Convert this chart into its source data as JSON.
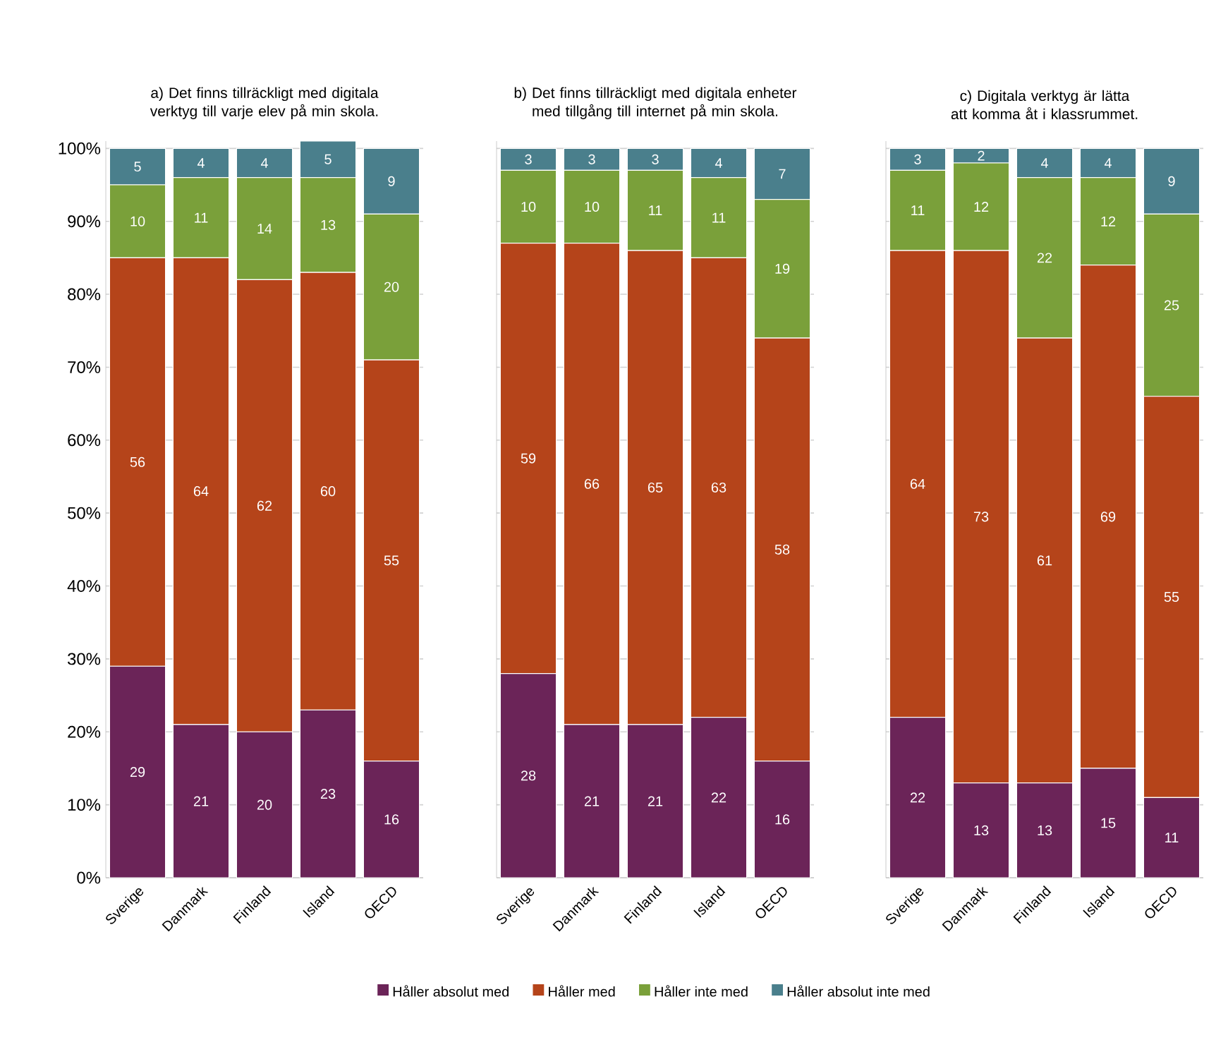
{
  "chart_data": [
    {
      "type": "bar",
      "stacked": true,
      "grid": "y",
      "legend": "bottom",
      "title": "a) Det finns tillräckligt med digitala verktyg till varje elev på min skola.",
      "categories": [
        "Sverige",
        "Danmark",
        "Finland",
        "Island",
        "OECD"
      ],
      "ylim": [
        0,
        101
      ],
      "yticks": [
        {
          "value": 0,
          "label": "0%"
        },
        {
          "value": 10,
          "label": "10%"
        },
        {
          "value": 20,
          "label": "20%"
        },
        {
          "value": 30,
          "label": "30%"
        },
        {
          "value": 40,
          "label": "40%"
        },
        {
          "value": 50,
          "label": "50%"
        },
        {
          "value": 60,
          "label": "60%"
        },
        {
          "value": 70,
          "label": "70%"
        },
        {
          "value": 80,
          "label": "80%"
        },
        {
          "value": 90,
          "label": "90%"
        },
        {
          "value": 100,
          "label": "100%"
        }
      ],
      "series": [
        {
          "name": "Håller absolut med",
          "color": "#6b2458",
          "values": [
            29,
            21,
            20,
            23,
            16
          ],
          "value_labels": [
            "29",
            "21",
            "20",
            "23",
            "16"
          ]
        },
        {
          "name": "Håller med",
          "color": "#b5441a",
          "values": [
            56,
            64,
            62,
            60,
            55
          ],
          "value_labels": [
            "56",
            "64",
            "62",
            "60",
            "55"
          ]
        },
        {
          "name": "Håller inte med",
          "color": "#7aa03a",
          "values": [
            10,
            11,
            14,
            13,
            20
          ],
          "value_labels": [
            "10",
            "11",
            "14",
            "13",
            "20"
          ]
        },
        {
          "name": "Håller absolut inte med",
          "color": "#4a7f8c",
          "values": [
            5,
            4,
            4,
            5,
            9
          ],
          "value_labels": [
            "5",
            "4",
            "4",
            "5",
            "9"
          ]
        }
      ]
    },
    {
      "type": "bar",
      "stacked": true,
      "grid": "y",
      "tick_labels": "x",
      "title": "b) Det finns tillräckligt med digitala enheter med tillgång till internet på min skola.",
      "categories": [
        "Sverige",
        "Danmark",
        "Finland",
        "Island",
        "OECD"
      ],
      "ylim": [
        0,
        101
      ],
      "yticks": [
        0,
        10,
        20,
        30,
        40,
        50,
        60,
        70,
        80,
        90,
        100
      ],
      "series": [
        {
          "color": "#6b2458",
          "values": [
            28,
            21,
            21,
            22,
            16
          ],
          "value_labels": [
            "28",
            "21",
            "21",
            "22",
            "16"
          ]
        },
        {
          "color": "#b5441a",
          "values": [
            59,
            66,
            65,
            63,
            58
          ],
          "value_labels": [
            "59",
            "66",
            "65",
            "63",
            "58"
          ]
        },
        {
          "color": "#7aa03a",
          "values": [
            10,
            10,
            11,
            11,
            19
          ],
          "value_labels": [
            "10",
            "10",
            "11",
            "11",
            "19"
          ]
        },
        {
          "color": "#4a7f8c",
          "values": [
            3,
            3,
            3,
            4,
            7
          ],
          "value_labels": [
            "3",
            "3",
            "3",
            "4",
            "7"
          ]
        }
      ]
    },
    {
      "type": "bar",
      "stacked": true,
      "grid": "y",
      "tick_labels": "x",
      "title": "c) Digitala verktyg är lätta att komma åt i klassrummet.",
      "categories": [
        "Sverige",
        "Danmark",
        "Finland",
        "Island",
        "OECD"
      ],
      "ylim": [
        0,
        101
      ],
      "yticks": [
        0,
        10,
        20,
        30,
        40,
        50,
        60,
        70,
        80,
        90,
        100
      ],
      "series": [
        {
          "color": "#6b2458",
          "values": [
            22,
            13,
            13,
            15,
            11
          ],
          "value_labels": [
            "22",
            "13",
            "13",
            "15",
            "11"
          ]
        },
        {
          "color": "#b5441a",
          "values": [
            64,
            73,
            61,
            69,
            55
          ],
          "value_labels": [
            "64",
            "73",
            "61",
            "69",
            "55"
          ]
        },
        {
          "color": "#7aa03a",
          "values": [
            11,
            12,
            22,
            12,
            25
          ],
          "value_labels": [
            "11",
            "12",
            "22",
            "12",
            "25"
          ]
        },
        {
          "color": "#4a7f8c",
          "values": [
            3,
            2,
            4,
            4,
            9
          ],
          "value_labels": [
            "3",
            "2",
            "4",
            "4",
            "9"
          ]
        }
      ]
    }
  ]
}
